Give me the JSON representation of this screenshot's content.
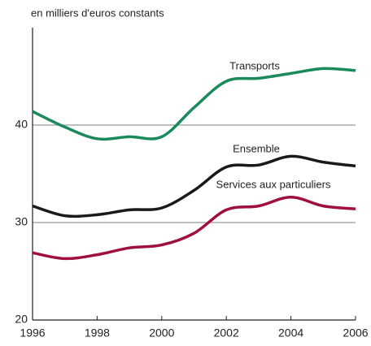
{
  "chart_data": {
    "type": "line",
    "ylabel": "en milliers d'euros constants",
    "x": [
      1996,
      1997,
      1998,
      1999,
      2000,
      2001,
      2002,
      2003,
      2004,
      2005,
      2006
    ],
    "series": [
      {
        "name": "Transports",
        "color": "#1a8a5a",
        "values": [
          41.4,
          39.8,
          38.6,
          38.8,
          38.8,
          41.8,
          44.5,
          44.8,
          45.3,
          45.8,
          45.6
        ]
      },
      {
        "name": "Ensemble",
        "color": "#1a1a1a",
        "values": [
          31.7,
          30.7,
          30.8,
          31.3,
          31.5,
          33.3,
          35.7,
          35.9,
          36.8,
          36.2,
          35.8
        ]
      },
      {
        "name": "Services aux particuliers",
        "color": "#a0103c",
        "values": [
          26.9,
          26.3,
          26.7,
          27.4,
          27.7,
          28.9,
          31.3,
          31.7,
          32.6,
          31.7,
          31.4
        ]
      }
    ],
    "xlim": [
      1996,
      2006
    ],
    "xticks": [
      1996,
      1998,
      2000,
      2002,
      2004,
      2006
    ],
    "ylim": [
      20,
      50
    ],
    "yticks": [
      20,
      30,
      40
    ],
    "grid": true
  }
}
